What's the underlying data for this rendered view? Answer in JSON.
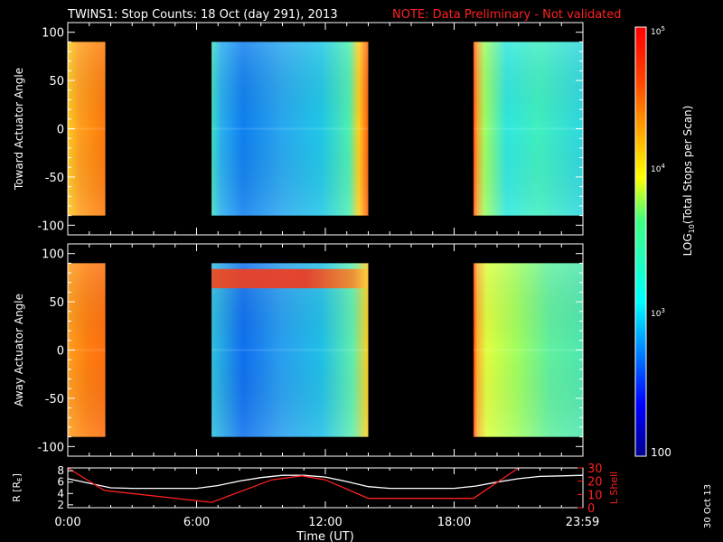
{
  "header": {
    "title": "TWINS1: Stop Counts: 18 Oct (day 291), 2013",
    "note": "NOTE: Data Preliminary - Not validated",
    "note_color": "#ff2020",
    "stamp": "30 Oct 13"
  },
  "chart_data": [
    {
      "type": "heatmap",
      "ylabel": "Toward Actuator Angle",
      "ylim": [
        -110,
        110
      ],
      "yticks": [
        100,
        50,
        0,
        -50,
        -100
      ],
      "xlim": [
        0,
        24
      ],
      "angle_range": [
        -90,
        90
      ],
      "data_intervals": [
        {
          "start": 0.0,
          "end": 1.75,
          "level": "orange-yellow"
        },
        {
          "start": 6.7,
          "end": 14.0,
          "level": "blue-cyan"
        },
        {
          "start": 18.9,
          "end": 24.0,
          "level": "cyan-green"
        }
      ]
    },
    {
      "type": "heatmap",
      "ylabel": "Away Actuator Angle",
      "ylim": [
        -110,
        110
      ],
      "yticks": [
        100,
        50,
        0,
        -50,
        -100
      ],
      "xlim": [
        0,
        24
      ],
      "angle_range": [
        -90,
        90
      ],
      "data_intervals": [
        {
          "start": 0.0,
          "end": 1.75,
          "level": "orange"
        },
        {
          "start": 6.7,
          "end": 14.0,
          "level": "blue-cyan",
          "feature": "red band near 75 deg"
        },
        {
          "start": 18.9,
          "end": 24.0,
          "level": "green-yellow"
        }
      ]
    },
    {
      "type": "line",
      "ylabel_left": "R [RE]",
      "ylabel_right": "L Shell",
      "yticks_left": [
        8,
        6,
        4,
        2
      ],
      "yticks_right": [
        30,
        20,
        10,
        0
      ],
      "ylim_left": [
        1.5,
        8.5
      ],
      "ylim_right": [
        0,
        30
      ],
      "xlabel": "Time (UT)",
      "xticks": [
        "0:00",
        "6:00",
        "12:00",
        "18:00",
        "23:59"
      ],
      "xtick_values": [
        0,
        6,
        12,
        18,
        23.98
      ],
      "series": [
        {
          "color": "#ffffff",
          "x": [
            0,
            1,
            2,
            3,
            4,
            5,
            6,
            7,
            8,
            9,
            10,
            11,
            12,
            13,
            14,
            15,
            16,
            17,
            18,
            19,
            20,
            21,
            22,
            23,
            24
          ],
          "y": [
            6.6,
            5.8,
            5.0,
            4.9,
            4.9,
            4.9,
            4.9,
            5.4,
            6.2,
            6.8,
            7.2,
            7.2,
            6.9,
            6.1,
            5.2,
            4.9,
            4.9,
            4.9,
            4.9,
            5.3,
            6.0,
            6.6,
            7.0,
            7.1,
            7.2
          ]
        },
        {
          "color": "#ff2020",
          "x": [
            0,
            1.7,
            6.7,
            9.5,
            10.9,
            12.0,
            14.0,
            18.9,
            21.0
          ],
          "y": [
            30,
            13,
            4,
            21,
            24,
            21,
            7,
            7,
            30
          ]
        }
      ]
    }
  ],
  "colorbar": {
    "label": "LOG10(Total Stops per Scan)",
    "ticks": [
      "10^5",
      "10^4",
      "10^3",
      "100"
    ],
    "tick_values": [
      5,
      4,
      3,
      2
    ]
  }
}
